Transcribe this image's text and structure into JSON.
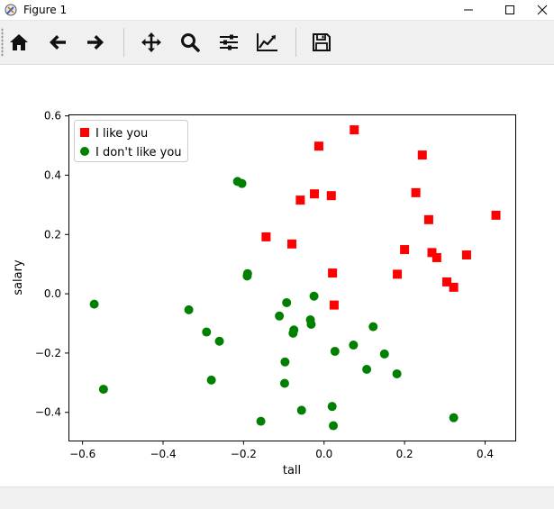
{
  "window": {
    "title": "Figure 1",
    "icons": [
      "app-icon",
      "minimize-icon",
      "maximize-icon",
      "close-icon"
    ]
  },
  "toolbar": {
    "buttons": [
      {
        "name": "home",
        "icon": "home-icon"
      },
      {
        "name": "back",
        "icon": "arrow-left-icon"
      },
      {
        "name": "forward",
        "icon": "arrow-right-icon"
      },
      {
        "name": "pan",
        "icon": "move-icon"
      },
      {
        "name": "zoom",
        "icon": "magnifier-icon"
      },
      {
        "name": "configure-subplots",
        "icon": "sliders-icon"
      },
      {
        "name": "edit-axis",
        "icon": "line-chart-icon"
      },
      {
        "name": "save",
        "icon": "floppy-disk-icon"
      }
    ]
  },
  "chart_data": {
    "type": "scatter",
    "title": "",
    "xlabel": "tall",
    "ylabel": "salary",
    "xlim": [
      -0.635,
      0.475
    ],
    "ylim": [
      -0.495,
      0.605
    ],
    "xticks": [
      -0.6,
      -0.4,
      -0.2,
      0.0,
      0.2,
      0.4
    ],
    "xtick_labels": [
      "−0.6",
      "−0.4",
      "−0.2",
      "0.0",
      "0.2",
      "0.4"
    ],
    "yticks": [
      -0.4,
      -0.2,
      0.0,
      0.2,
      0.4,
      0.6
    ],
    "ytick_labels": [
      "−0.4",
      "−0.2",
      "0.0",
      "0.2",
      "0.4",
      "0.6"
    ],
    "grid": false,
    "legend_position": "upper-left",
    "series": [
      {
        "name": "I like you",
        "marker": "square",
        "color": "#ff0000",
        "points": [
          [
            0.075,
            0.553
          ],
          [
            -0.013,
            0.498
          ],
          [
            0.244,
            0.468
          ],
          [
            0.228,
            0.341
          ],
          [
            -0.024,
            0.337
          ],
          [
            -0.059,
            0.316
          ],
          [
            0.018,
            0.331
          ],
          [
            0.427,
            0.265
          ],
          [
            0.26,
            0.25
          ],
          [
            -0.144,
            0.192
          ],
          [
            -0.08,
            0.168
          ],
          [
            0.2,
            0.149
          ],
          [
            0.268,
            0.139
          ],
          [
            0.28,
            0.122
          ],
          [
            0.354,
            0.131
          ],
          [
            0.182,
            0.066
          ],
          [
            0.021,
            0.07
          ],
          [
            0.305,
            0.04
          ],
          [
            0.322,
            0.022
          ],
          [
            0.025,
            -0.038
          ]
        ]
      },
      {
        "name": "I don't like you",
        "marker": "circle",
        "color": "#008000",
        "points": [
          [
            -0.215,
            0.379
          ],
          [
            -0.204,
            0.372
          ],
          [
            -0.19,
            0.068
          ],
          [
            -0.191,
            0.06
          ],
          [
            -0.571,
            -0.035
          ],
          [
            -0.548,
            -0.322
          ],
          [
            -0.336,
            -0.054
          ],
          [
            -0.292,
            -0.129
          ],
          [
            -0.26,
            -0.16
          ],
          [
            -0.28,
            -0.291
          ],
          [
            -0.111,
            -0.075
          ],
          [
            -0.093,
            -0.03
          ],
          [
            -0.025,
            -0.008
          ],
          [
            -0.075,
            -0.122
          ],
          [
            -0.077,
            -0.133
          ],
          [
            -0.034,
            -0.088
          ],
          [
            -0.032,
            -0.103
          ],
          [
            -0.097,
            -0.23
          ],
          [
            -0.098,
            -0.302
          ],
          [
            -0.056,
            -0.393
          ],
          [
            -0.157,
            -0.43
          ],
          [
            0.122,
            -0.111
          ],
          [
            0.073,
            -0.173
          ],
          [
            0.027,
            -0.194
          ],
          [
            0.15,
            -0.203
          ],
          [
            0.106,
            -0.255
          ],
          [
            0.181,
            -0.27
          ],
          [
            0.02,
            -0.38
          ],
          [
            0.023,
            -0.445
          ],
          [
            0.322,
            -0.418
          ]
        ]
      }
    ]
  }
}
